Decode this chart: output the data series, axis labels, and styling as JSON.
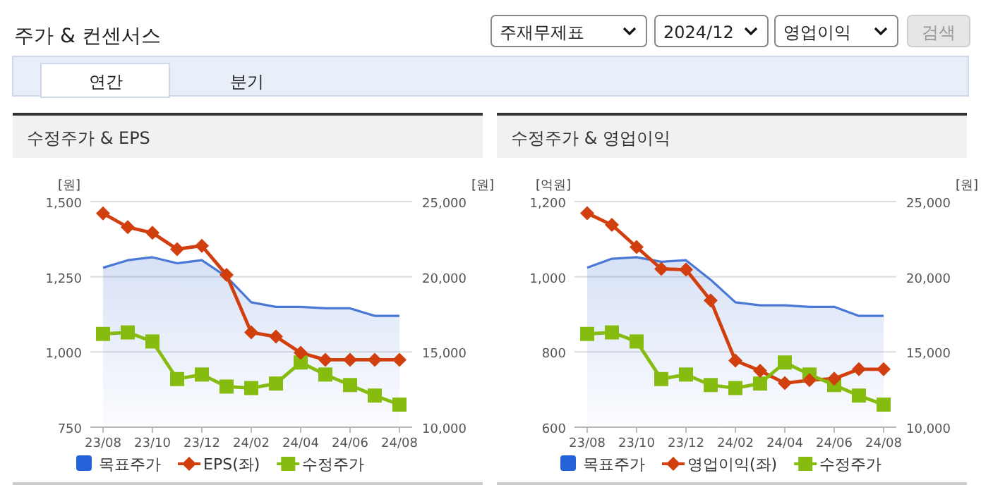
{
  "chart_data": [
    {
      "type": "line",
      "title": "수정주가 & EPS",
      "ylabel": "[원]",
      "y2label": "[원]",
      "annotations": [
        "주가 & 컨센서스",
        "주재무제표",
        "2024/12",
        "영업이익",
        "검색",
        "연간",
        "분기"
      ],
      "categories": [
        "23/08",
        null,
        "23/10",
        null,
        "23/12",
        null,
        "24/02",
        null,
        "24/04",
        null,
        "24/06",
        null,
        "24/08"
      ],
      "ylim": [
        750,
        1500
      ],
      "yticks": [
        {
          "value": 750,
          "label": "750"
        },
        {
          "value": 1000,
          "label": "1,000"
        },
        {
          "value": 1250,
          "label": "1,250"
        },
        {
          "value": 1500,
          "label": "1,500"
        }
      ],
      "y2lim": [
        10000,
        25000
      ],
      "y2ticks": [
        {
          "value": 10000,
          "label": "10,000"
        },
        {
          "value": 15000,
          "label": "15,000"
        },
        {
          "value": 20000,
          "label": "20,000"
        },
        {
          "value": 25000,
          "label": "25,000"
        }
      ],
      "grid": "y",
      "legend": "bottom",
      "series": [
        {
          "name": "목표주가",
          "type": "area",
          "axis": "y2",
          "color": "#4a78d6",
          "values": [
            20600,
            21100,
            21300,
            20900,
            21100,
            20000,
            18300,
            18000,
            18000,
            17900,
            17900,
            17400,
            17400
          ]
        },
        {
          "name": "EPS(좌)",
          "type": "line",
          "marker": "diamond",
          "color": "#d23f0e",
          "values": [
            1461,
            1415,
            1396,
            1342,
            1353,
            1256,
            1065,
            1051,
            997,
            974,
            974,
            974,
            974
          ]
        },
        {
          "name": "수정주가",
          "type": "line",
          "marker": "square",
          "axis": "y2",
          "color": "#86bc10",
          "values": [
            16200,
            16300,
            15700,
            13200,
            13500,
            12700,
            12600,
            12900,
            14300,
            13500,
            12800,
            12100,
            11500
          ]
        }
      ]
    },
    {
      "type": "line",
      "title": "수정주가 & 영업이익",
      "ylabel": "[억원]",
      "y2label": "[원]",
      "categories": [
        "23/08",
        null,
        "23/10",
        null,
        "23/12",
        null,
        "24/02",
        null,
        "24/04",
        null,
        "24/06",
        null,
        "24/08"
      ],
      "ylim": [
        600,
        1200
      ],
      "yticks": [
        600,
        800,
        {
          "value": 1000,
          "label": "1,000"
        },
        {
          "value": 1200,
          "label": "1,200"
        }
      ],
      "y2lim": [
        10000,
        25000
      ],
      "y2ticks": [
        {
          "value": 10000,
          "label": "10,000"
        },
        {
          "value": 15000,
          "label": "15,000"
        },
        {
          "value": 20000,
          "label": "20,000"
        },
        {
          "value": 25000,
          "label": "25,000"
        }
      ],
      "grid": "y",
      "legend": "bottom",
      "series": [
        {
          "name": "목표주가",
          "type": "area",
          "axis": "y2",
          "color": "#4a78d6",
          "values": [
            20600,
            21200,
            21300,
            21000,
            21100,
            19800,
            18300,
            18100,
            18100,
            18000,
            18000,
            17400,
            17400
          ]
        },
        {
          "name": "영업이익(좌)",
          "type": "line",
          "marker": "diamond",
          "color": "#d23f0e",
          "values": [
            1169,
            1138,
            1079,
            1021,
            1019,
            937,
            777,
            750,
            717,
            725,
            729,
            754,
            754
          ]
        },
        {
          "name": "수정주가",
          "type": "line",
          "marker": "square",
          "axis": "y2",
          "color": "#86bc10",
          "values": [
            16200,
            16300,
            15700,
            13200,
            13500,
            12800,
            12600,
            12900,
            14300,
            13500,
            12800,
            12100,
            11500
          ]
        }
      ]
    }
  ]
}
